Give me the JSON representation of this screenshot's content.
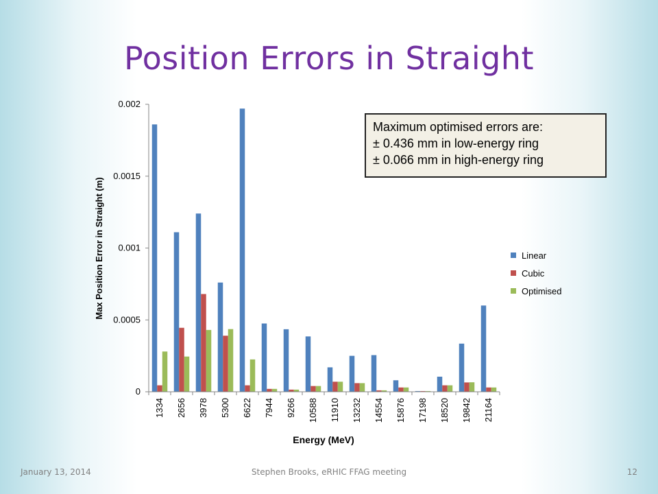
{
  "slide": {
    "title": "Position Errors in Straight",
    "footer_date": "January 13, 2014",
    "footer_center": "Stephen Brooks, eRHIC FFAG meeting",
    "page_number": "12"
  },
  "callout": {
    "line1": "Maximum optimised errors are:",
    "line2": "± 0.436 mm in low-energy ring",
    "line3": "± 0.066 mm in high-energy ring"
  },
  "colors": {
    "linear": "#4f81bd",
    "cubic": "#c0504d",
    "optimised": "#9bbb59",
    "title": "#7030a0"
  },
  "chart_data": {
    "type": "bar",
    "xlabel": "Energy (MeV)",
    "ylabel": "Max Position Error in Straight (m)",
    "ylim": [
      0,
      0.002
    ],
    "yticks": [
      "0",
      "0.0005",
      "0.001",
      "0.0015",
      "0.002"
    ],
    "ytick_values": [
      0,
      0.0005,
      0.001,
      0.0015,
      0.002
    ],
    "grid": false,
    "legend_position": "right",
    "categories": [
      "1334",
      "2656",
      "3978",
      "5300",
      "6622",
      "7944",
      "9266",
      "10588",
      "11910",
      "13232",
      "14554",
      "15876",
      "17198",
      "18520",
      "19842",
      "21164"
    ],
    "series": [
      {
        "name": "Linear",
        "color": "#4f81bd",
        "values": [
          0.00186,
          0.00111,
          0.00124,
          0.00076,
          0.00197,
          0.000475,
          0.000435,
          0.000385,
          0.00017,
          0.00025,
          0.000255,
          8e-05,
          5e-06,
          0.000105,
          0.000335,
          0.0006
        ]
      },
      {
        "name": "Cubic",
        "color": "#c0504d",
        "values": [
          4.5e-05,
          0.000445,
          0.00068,
          0.00039,
          4.5e-05,
          2e-05,
          1.5e-05,
          4e-05,
          7e-05,
          6e-05,
          1e-05,
          3e-05,
          5e-06,
          4.5e-05,
          6.5e-05,
          3e-05
        ]
      },
      {
        "name": "Optimised",
        "color": "#9bbb59",
        "values": [
          0.00028,
          0.000245,
          0.00043,
          0.000436,
          0.000225,
          2e-05,
          1.5e-05,
          4e-05,
          7e-05,
          6e-05,
          1e-05,
          3e-05,
          5e-06,
          4.5e-05,
          6.6e-05,
          3e-05
        ]
      }
    ]
  }
}
